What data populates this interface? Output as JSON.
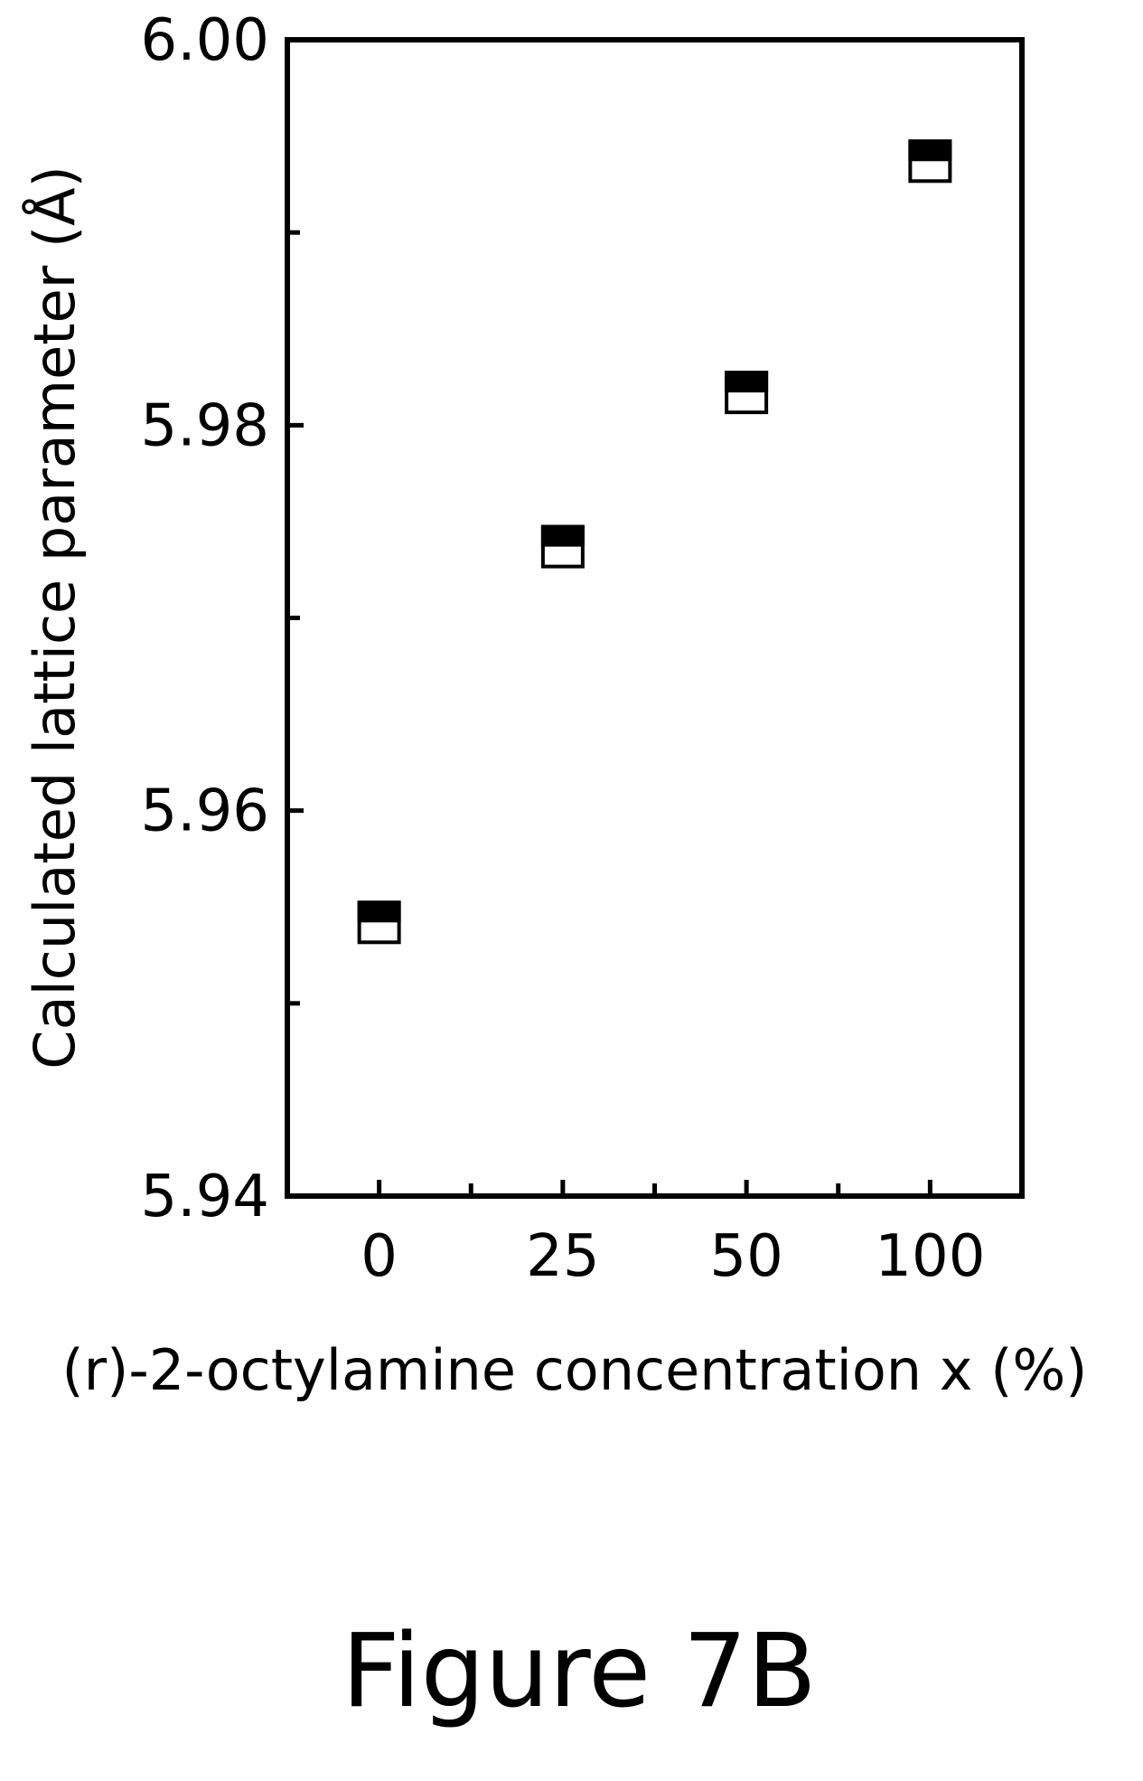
{
  "figure": {
    "caption": "Figure 7B"
  },
  "chart_data": {
    "type": "scatter",
    "title": "",
    "xlabel": "(r)-2-octylamine concentration x (%)",
    "ylabel": "Calculated lattice parameter (Å)",
    "categories": [
      "0",
      "25",
      "50",
      "100"
    ],
    "series": [
      {
        "values": [
          5.9542,
          5.9737,
          5.9817,
          5.9937
        ],
        "marker": "half-filled-square",
        "color": "#000000"
      }
    ],
    "ylim": [
      5.94,
      6.0
    ],
    "yticks": [
      "5.94",
      "5.96",
      "5.98",
      "6.00"
    ],
    "y_minor_ticks": [
      5.95,
      5.97,
      5.99
    ],
    "grid": false,
    "legend": "none"
  }
}
